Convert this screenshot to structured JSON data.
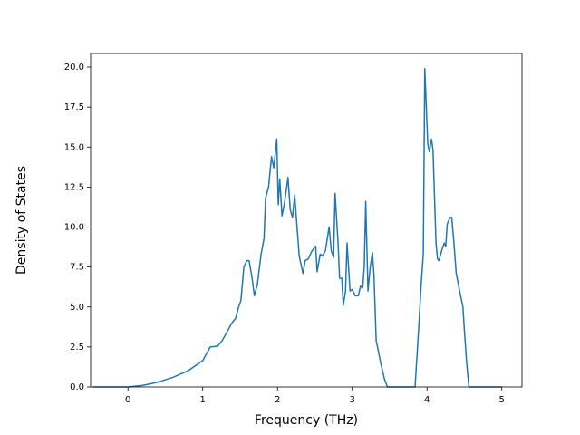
{
  "chart_data": {
    "type": "line",
    "xlabel": "Frequency (THz)",
    "ylabel": "Density of States",
    "x": [
      -0.47,
      0,
      0.2,
      0.4,
      0.6,
      0.8,
      1.0,
      1.1,
      1.2,
      1.26,
      1.32,
      1.39,
      1.44,
      1.48,
      1.51,
      1.55,
      1.59,
      1.62,
      1.66,
      1.69,
      1.73,
      1.78,
      1.82,
      1.84,
      1.88,
      1.92,
      1.95,
      1.99,
      2.01,
      2.03,
      2.06,
      2.09,
      2.14,
      2.17,
      2.2,
      2.23,
      2.25,
      2.29,
      2.34,
      2.37,
      2.41,
      2.46,
      2.51,
      2.53,
      2.57,
      2.6,
      2.64,
      2.69,
      2.72,
      2.75,
      2.77,
      2.81,
      2.83,
      2.86,
      2.88,
      2.91,
      2.93,
      2.97,
      3.0,
      3.04,
      3.08,
      3.11,
      3.14,
      3.16,
      3.18,
      3.21,
      3.24,
      3.27,
      3.29,
      3.32,
      3.38,
      3.43,
      3.47,
      3.84,
      3.89,
      3.92,
      3.95,
      3.97,
      4.01,
      4.03,
      4.06,
      4.08,
      4.12,
      4.14,
      4.16,
      4.2,
      4.23,
      4.25,
      4.27,
      4.31,
      4.33,
      4.36,
      4.39,
      4.44,
      4.48,
      4.5,
      4.53,
      4.56,
      5.0
    ],
    "series": [
      {
        "color": "#1f77b4",
        "values": [
          0,
          0,
          0.1,
          0.3,
          0.6,
          1.0,
          1.65,
          2.5,
          2.55,
          2.9,
          3.4,
          4.0,
          4.3,
          5.0,
          5.4,
          7.5,
          7.9,
          7.9,
          6.8,
          5.7,
          6.4,
          8.3,
          9.3,
          11.8,
          12.5,
          14.4,
          13.7,
          15.5,
          11.4,
          13.0,
          10.7,
          11.4,
          13.1,
          11.1,
          10.6,
          12.0,
          10.7,
          8.2,
          7.1,
          7.9,
          8.0,
          8.5,
          8.8,
          7.2,
          8.3,
          8.2,
          8.5,
          10.0,
          8.5,
          8.1,
          12.1,
          9.0,
          6.8,
          6.8,
          5.1,
          6.0,
          9.0,
          6.0,
          6.1,
          5.7,
          5.7,
          6.3,
          6.2,
          7.5,
          11.6,
          6.0,
          7.5,
          8.4,
          7.0,
          2.9,
          1.5,
          0.5,
          0,
          0,
          3.8,
          6.3,
          8.3,
          19.9,
          15.2,
          14.7,
          15.5,
          14.8,
          9.0,
          8.0,
          7.9,
          8.6,
          9.0,
          8.8,
          10.2,
          10.6,
          10.6,
          9.0,
          7.1,
          5.9,
          5.0,
          3.5,
          1.5,
          0,
          0
        ]
      }
    ],
    "xlim": [
      -0.5,
      5.27
    ],
    "ylim": [
      0,
      20.85
    ],
    "xticks": [
      0,
      1,
      2,
      3,
      4,
      5
    ],
    "yticks": [
      {
        "value": 0,
        "label": "0.0"
      },
      {
        "value": 2.5,
        "label": "2.5"
      },
      {
        "value": 5,
        "label": "5.0"
      },
      {
        "value": 7.5,
        "label": "7.5"
      },
      {
        "value": 10,
        "label": "10.0"
      },
      {
        "value": 12.5,
        "label": "12.5"
      },
      {
        "value": 15,
        "label": "15.0"
      },
      {
        "value": 17.5,
        "label": "17.5"
      },
      {
        "value": 20,
        "label": "20.0"
      }
    ]
  }
}
